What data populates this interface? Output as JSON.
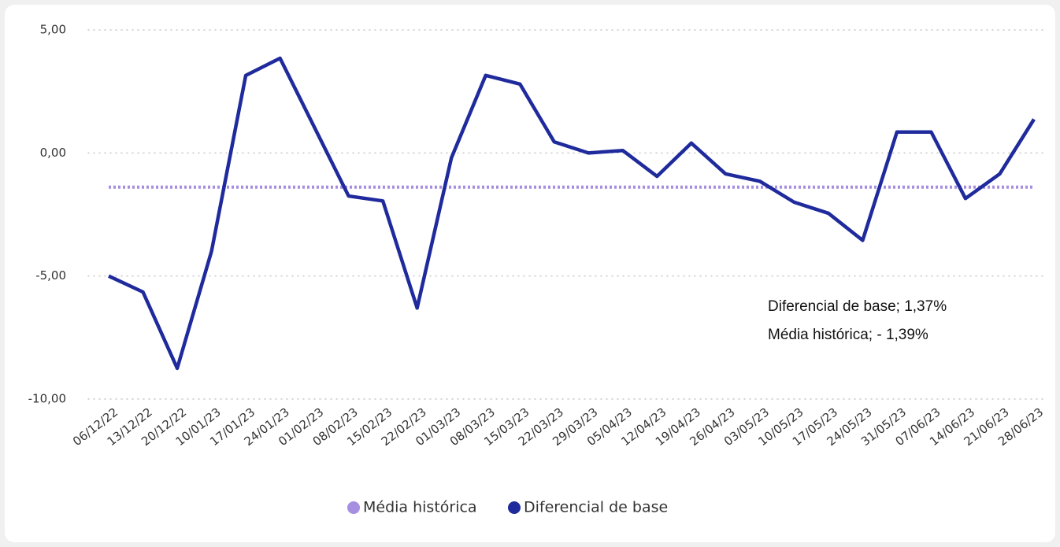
{
  "chart_data": {
    "type": "line",
    "categories": [
      "06/12/22",
      "13/12/22",
      "20/12/22",
      "10/01/23",
      "17/01/23",
      "24/01/23",
      "01/02/23",
      "08/02/23",
      "15/02/23",
      "22/02/23",
      "01/03/23",
      "08/03/23",
      "15/03/23",
      "22/03/23",
      "29/03/23",
      "05/04/23",
      "12/04/23",
      "19/04/23",
      "26/04/23",
      "03/05/23",
      "10/05/23",
      "17/05/23",
      "24/05/23",
      "31/05/23",
      "07/06/23",
      "14/06/23",
      "21/06/23",
      "28/06/23"
    ],
    "series": [
      {
        "name": "Média histórica",
        "color": "#a68ee0",
        "dashed": true,
        "values": [
          -1.39,
          -1.39,
          -1.39,
          -1.39,
          -1.39,
          -1.39,
          -1.39,
          -1.39,
          -1.39,
          -1.39,
          -1.39,
          -1.39,
          -1.39,
          -1.39,
          -1.39,
          -1.39,
          -1.39,
          -1.39,
          -1.39,
          -1.39,
          -1.39,
          -1.39,
          -1.39,
          -1.39,
          -1.39,
          -1.39,
          -1.39,
          -1.39
        ]
      },
      {
        "name": "Diferencial de base",
        "color": "#1f2a9c",
        "dashed": false,
        "values": [
          -5.0,
          -5.65,
          -8.75,
          -4.0,
          3.15,
          3.85,
          1.05,
          -1.75,
          -1.95,
          -6.3,
          -0.2,
          3.15,
          2.8,
          0.45,
          0.0,
          0.1,
          -0.95,
          0.4,
          -0.85,
          -1.15,
          -2.0,
          -2.45,
          -3.55,
          0.85,
          0.85,
          -1.85,
          -0.85,
          1.37
        ]
      }
    ],
    "ylim": [
      -10,
      5
    ],
    "yticks": [
      {
        "value": -10,
        "label": "-10,00"
      },
      {
        "value": -5,
        "label": "-5,00"
      },
      {
        "value": 0,
        "label": "0,00"
      },
      {
        "value": 5,
        "label": "5,00"
      }
    ],
    "grid": true,
    "annotations": [
      "Diferencial de base; 1,37%",
      "Média histórica; - 1,39%"
    ],
    "legend": "bottom"
  }
}
